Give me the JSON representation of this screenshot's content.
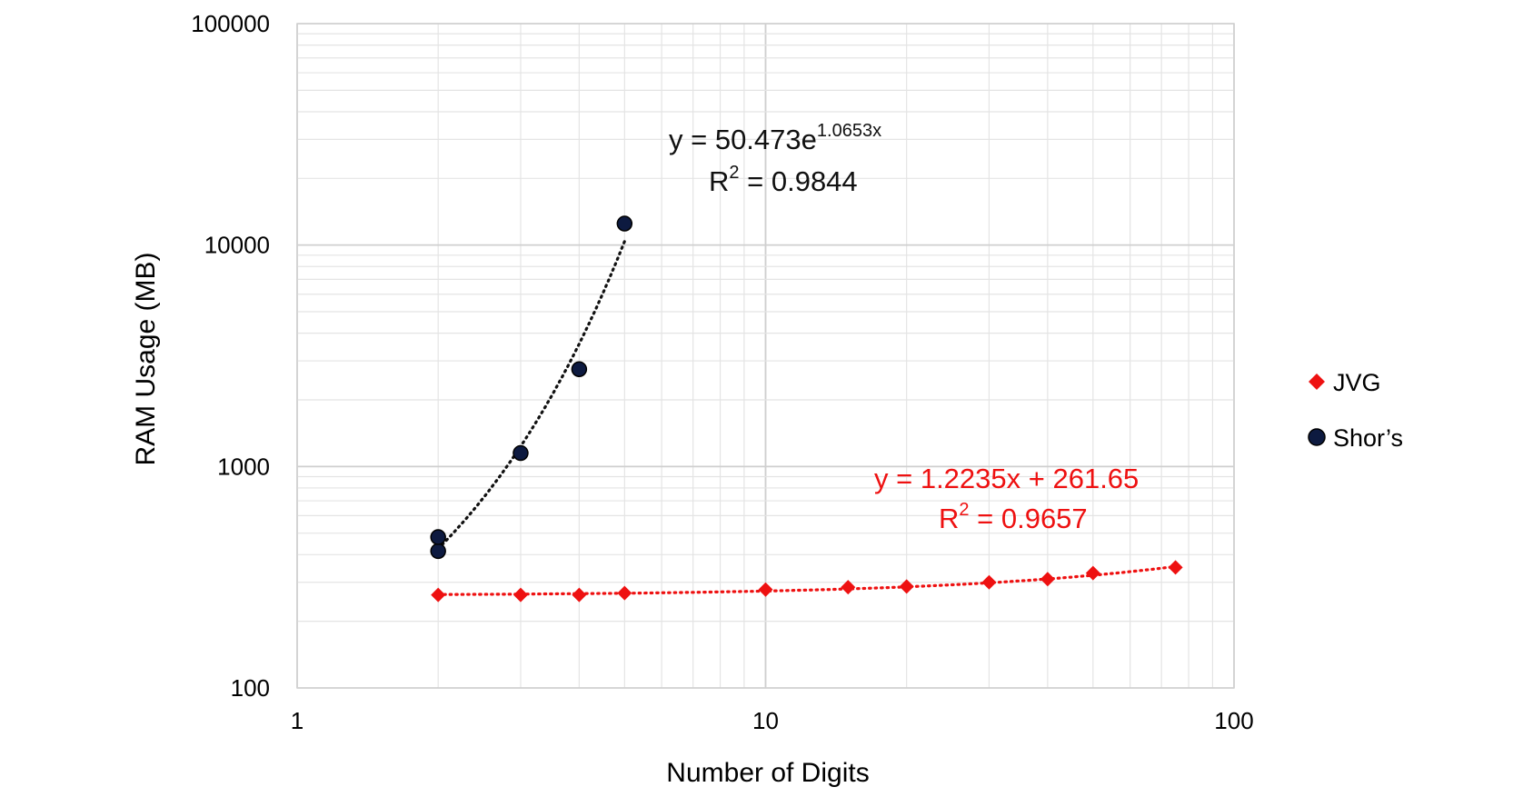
{
  "chart_data": {
    "type": "scatter",
    "xlabel": "Number of Digits",
    "ylabel": "RAM Usage (MB)",
    "x_scale": "log",
    "y_scale": "log",
    "xlim": [
      1,
      100
    ],
    "ylim": [
      100,
      100000
    ],
    "x_ticks": [
      "1",
      "10",
      "100"
    ],
    "y_ticks": [
      "100",
      "1000",
      "10000",
      "100000"
    ],
    "grid": true,
    "legend_position": "right",
    "series": [
      {
        "name": "JVG",
        "marker": "diamond",
        "color": "#ee1111",
        "x": [
          2,
          3,
          4,
          5,
          10,
          15,
          20,
          30,
          40,
          50,
          75
        ],
        "y": [
          263,
          263,
          263,
          268,
          278,
          285,
          287,
          300,
          310,
          330,
          350
        ],
        "trendline": {
          "kind": "linear",
          "equation": "y = 1.2235x + 261.65",
          "r2_label": "R",
          "r2_sup": "2",
          "r2_value": " = 0.9657",
          "slope": 1.2235,
          "intercept": 261.65
        }
      },
      {
        "name": "Shor’s",
        "marker": "circle",
        "color": "#0d1a40",
        "x": [
          2,
          2,
          3,
          4,
          5
        ],
        "y": [
          415,
          480,
          1150,
          2750,
          12500
        ],
        "trendline": {
          "kind": "exponential",
          "equation_prefix": "y = 50.473e",
          "equation_exponent": "1.0653x",
          "r2_label": "R",
          "r2_sup": "2",
          "r2_value": " = 0.9844",
          "a": 50.473,
          "b": 1.0653
        }
      }
    ]
  }
}
